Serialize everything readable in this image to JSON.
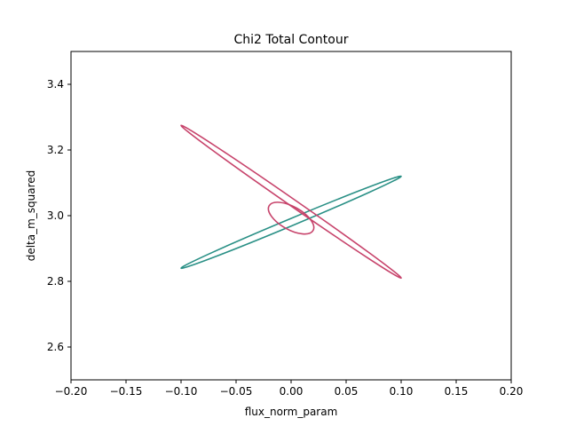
{
  "chart_data": {
    "type": "line",
    "title": "Chi2 Total Contour",
    "xlabel": "flux_norm_param",
    "ylabel": "delta_m_squared",
    "xlim": [
      -0.2,
      0.2
    ],
    "ylim": [
      2.5,
      3.5
    ],
    "x_ticks": [
      "−0.20",
      "−0.15",
      "−0.10",
      "−0.05",
      "0.00",
      "0.05",
      "0.10",
      "0.15",
      "0.20"
    ],
    "y_ticks": [
      "2.6",
      "2.8",
      "3.0",
      "3.2",
      "3.4"
    ],
    "grid": false,
    "legend": "none",
    "series": [
      {
        "color": "#2a9086",
        "shape": "ellipse",
        "center": [
          0.0,
          2.98
        ],
        "extreme_points": [
          [
            -0.1,
            2.84
          ],
          [
            0.1,
            3.12
          ]
        ],
        "approx_points": [
          [
            -0.1,
            2.84
          ],
          [
            -0.05,
            2.92
          ],
          [
            0.0,
            2.99
          ],
          [
            0.05,
            3.06
          ],
          [
            0.1,
            3.12
          ],
          [
            0.05,
            3.04
          ],
          [
            0.0,
            2.97
          ],
          [
            -0.05,
            2.9
          ]
        ]
      },
      {
        "color": "#c7436b",
        "shape": "ellipse",
        "center": [
          0.0,
          3.045
        ],
        "extreme_points": [
          [
            -0.1,
            3.275
          ],
          [
            0.1,
            2.81
          ]
        ],
        "approx_points": [
          [
            -0.1,
            3.275
          ],
          [
            -0.05,
            3.17
          ],
          [
            0.0,
            3.05
          ],
          [
            0.05,
            2.93
          ],
          [
            0.1,
            2.81
          ],
          [
            0.05,
            2.92
          ],
          [
            0.0,
            3.04
          ],
          [
            -0.05,
            3.16
          ]
        ]
      },
      {
        "color": "#c7436b",
        "shape": "ellipse",
        "center": [
          0.0,
          2.995
        ],
        "extreme_points": [
          [
            -0.02,
            3.03
          ],
          [
            0.02,
            2.955
          ]
        ],
        "approx_points": [
          [
            -0.02,
            3.03
          ],
          [
            0.0,
            3.02
          ],
          [
            0.02,
            2.99
          ],
          [
            0.01,
            2.96
          ],
          [
            0.0,
            2.965
          ],
          [
            -0.02,
            2.99
          ]
        ]
      }
    ]
  }
}
